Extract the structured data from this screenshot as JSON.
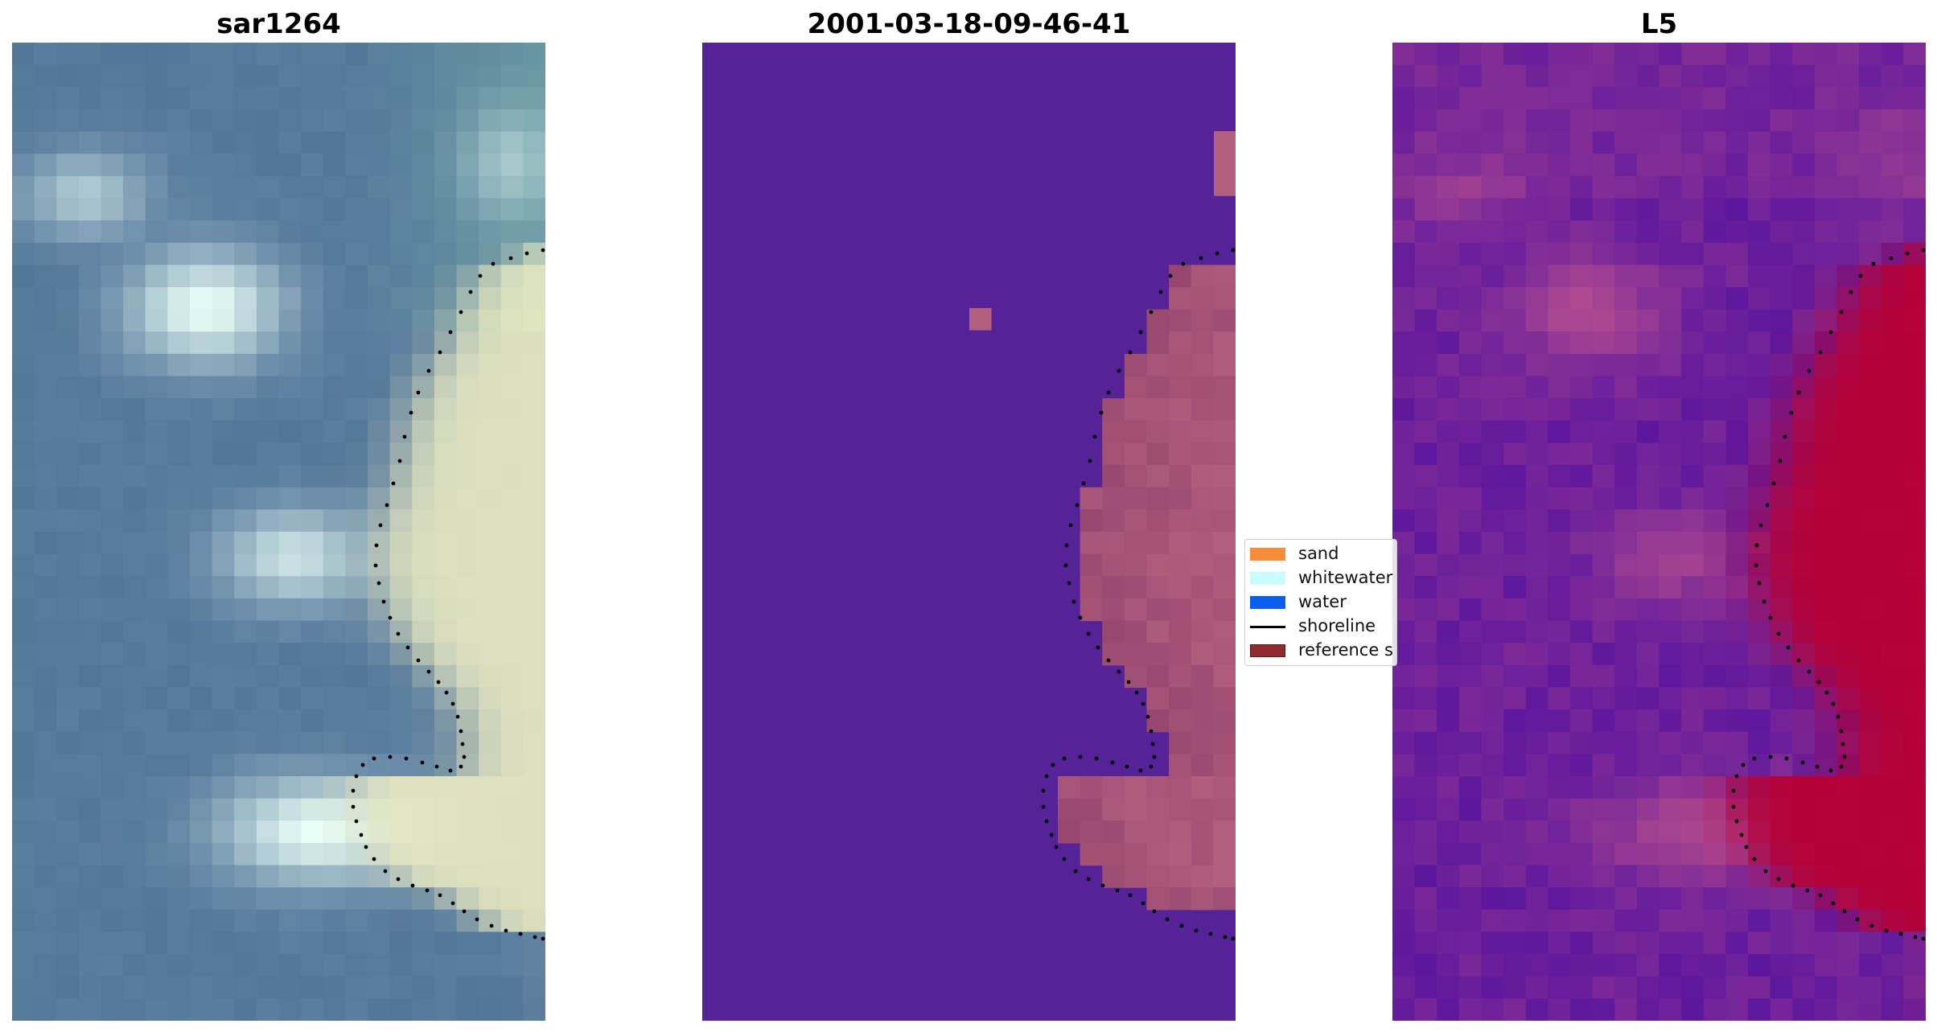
{
  "panels": [
    {
      "title": "sar1264",
      "kind": "rgb"
    },
    {
      "title": "2001-03-18-09-46-41",
      "kind": "classification"
    },
    {
      "title": "L5",
      "kind": "index"
    }
  ],
  "legend": {
    "items": [
      {
        "label": "sand",
        "color": "#f58d3a",
        "type": "patch"
      },
      {
        "label": "whitewater",
        "color": "#c9fcfd",
        "type": "patch"
      },
      {
        "label": "water",
        "color": "#0b5ef0",
        "type": "patch"
      },
      {
        "label": "shoreline",
        "color": "#000000",
        "type": "line"
      },
      {
        "label": "reference s",
        "color": "#8e2c30",
        "type": "patch"
      }
    ]
  },
  "colors": {
    "rgb_water": "#5b7e9f",
    "rgb_whitewater": "#e8fdf6",
    "rgb_sand": "#f4f2c4",
    "class_water": "#552397",
    "class_land": "#b3607f",
    "index_low": "#5d179d",
    "index_high": "#b80032"
  }
}
